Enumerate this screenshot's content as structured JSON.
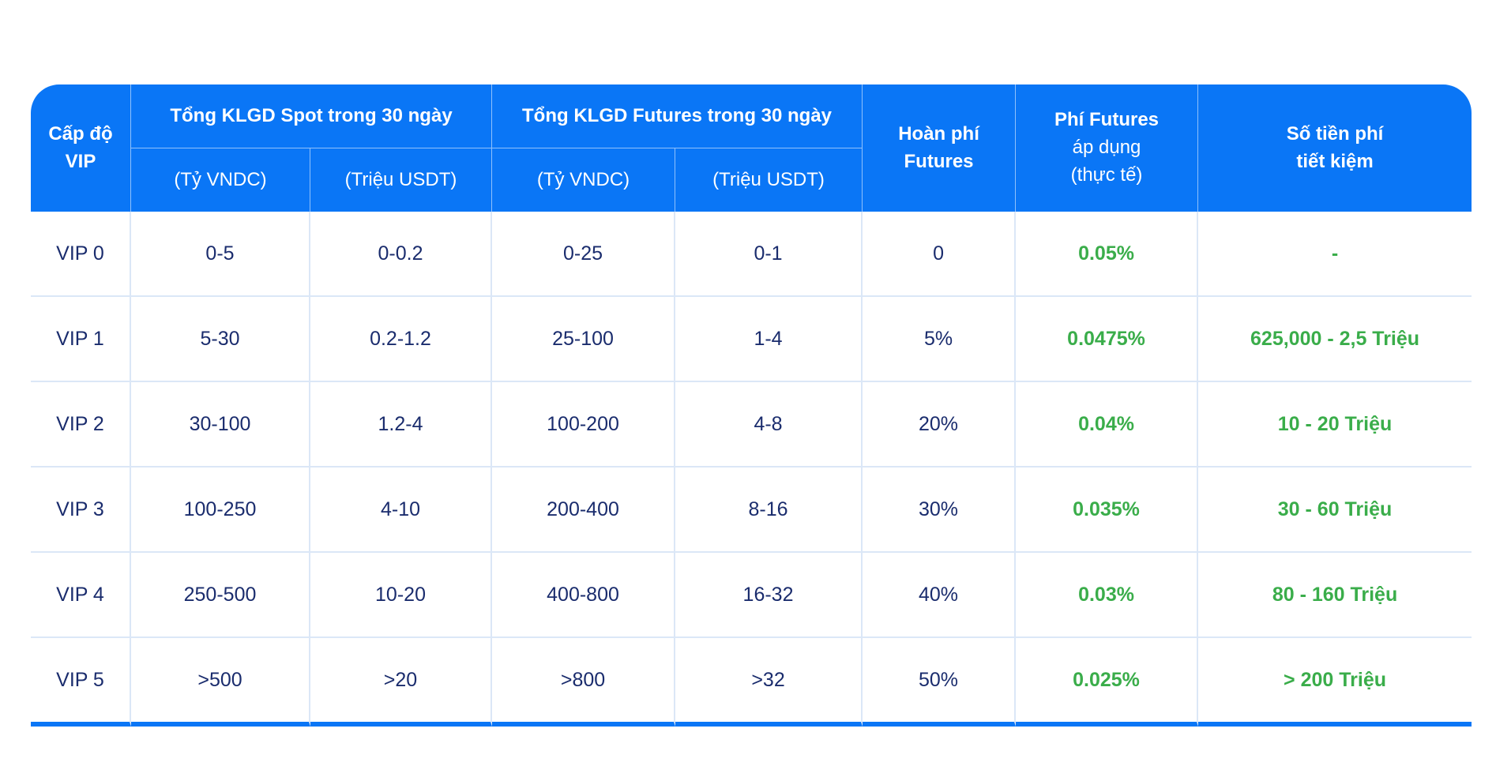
{
  "header": {
    "level": [
      "Cấp độ",
      "VIP"
    ],
    "spot_group": "Tổng KLGD Spot trong 30 ngày",
    "futures_group": "Tổng KLGD Futures trong 30 ngày",
    "unit_vndc": "(Tỷ VNDC)",
    "unit_usdt": "(Triệu USDT)",
    "rebate": [
      "Hoàn phí",
      "Futures"
    ],
    "fee": [
      "Phí Futures",
      "áp dụng",
      "(thực tế)"
    ],
    "savings": [
      "Số tiền phí",
      "tiết kiệm"
    ]
  },
  "rows": [
    {
      "level": "VIP 0",
      "spot_vndc": "0-5",
      "spot_usdt": "0-0.2",
      "fut_vndc": "0-25",
      "fut_usdt": "0-1",
      "rebate": "0",
      "fee": "0.05%",
      "savings": "-"
    },
    {
      "level": "VIP 1",
      "spot_vndc": "5-30",
      "spot_usdt": "0.2-1.2",
      "fut_vndc": "25-100",
      "fut_usdt": "1-4",
      "rebate": "5%",
      "fee": "0.0475%",
      "savings": "625,000 - 2,5 Triệu"
    },
    {
      "level": "VIP 2",
      "spot_vndc": "30-100",
      "spot_usdt": "1.2-4",
      "fut_vndc": "100-200",
      "fut_usdt": "4-8",
      "rebate": "20%",
      "fee": "0.04%",
      "savings": "10 - 20 Triệu"
    },
    {
      "level": "VIP 3",
      "spot_vndc": "100-250",
      "spot_usdt": "4-10",
      "fut_vndc": "200-400",
      "fut_usdt": "8-16",
      "rebate": "30%",
      "fee": "0.035%",
      "savings": "30 - 60 Triệu"
    },
    {
      "level": "VIP 4",
      "spot_vndc": "250-500",
      "spot_usdt": "10-20",
      "fut_vndc": "400-800",
      "fut_usdt": "16-32",
      "rebate": "40%",
      "fee": "0.03%",
      "savings": "80 - 160 Triệu"
    },
    {
      "level": "VIP 5",
      "spot_vndc": ">500",
      "spot_usdt": ">20",
      "fut_vndc": ">800",
      "fut_usdt": ">32",
      "rebate": "50%",
      "fee": "0.025%",
      "savings": "> 200 Triệu"
    }
  ],
  "colors": {
    "header_bg": "#0a76f6",
    "body_text": "#1a2c6d",
    "accent_green": "#3aad4a",
    "grid": "#dbe7f7"
  }
}
